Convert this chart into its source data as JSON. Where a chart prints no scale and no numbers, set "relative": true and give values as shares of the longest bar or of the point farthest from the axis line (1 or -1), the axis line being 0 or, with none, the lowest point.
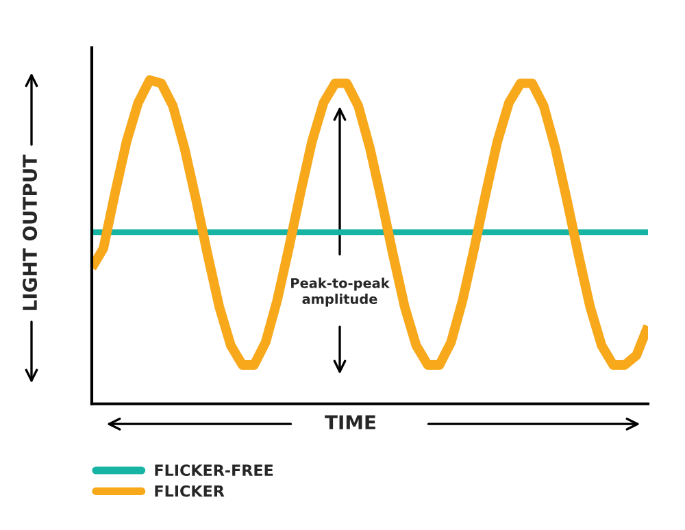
{
  "chart_data": {
    "type": "line",
    "relative": true,
    "xlabel": "TIME",
    "ylabel": "LIGHT OUTPUT",
    "categories": [
      null,
      null,
      null,
      null,
      null,
      null,
      null,
      null,
      null,
      null,
      null,
      null,
      null,
      null,
      null,
      null,
      null,
      null,
      null,
      null,
      null,
      null,
      null,
      null,
      null,
      null,
      null,
      null,
      null,
      null,
      null,
      null,
      null,
      null,
      null,
      null,
      null,
      null,
      null,
      null,
      null,
      null,
      null,
      null,
      null,
      null,
      null,
      null,
      null
    ],
    "series": [
      {
        "name": "FLICKER-FREE",
        "color": "#17b3a3",
        "values": [
          0.53,
          0.53,
          0.53,
          0.53,
          0.53,
          0.53,
          0.53,
          0.53,
          0.53,
          0.53,
          0.53,
          0.53,
          0.53,
          0.53,
          0.53,
          0.53,
          0.53,
          0.53,
          0.53,
          0.53,
          0.53,
          0.53,
          0.53,
          0.53,
          0.53,
          0.53,
          0.53,
          0.53,
          0.53,
          0.53,
          0.53,
          0.53,
          0.53,
          0.53,
          0.53,
          0.53,
          0.53,
          0.53,
          0.53,
          0.53,
          0.53,
          0.53,
          0.53,
          0.53,
          0.53,
          0.53,
          0.53,
          0.53,
          0.53
        ]
      },
      {
        "name": "FLICKER",
        "color": "#f7a81b",
        "values": [
          0.42,
          0.48,
          0.65,
          0.81,
          0.93,
          1.0,
          0.99,
          0.92,
          0.79,
          0.63,
          0.46,
          0.3,
          0.18,
          0.12,
          0.12,
          0.19,
          0.32,
          0.48,
          0.65,
          0.81,
          0.93,
          0.99,
          0.99,
          0.92,
          0.79,
          0.63,
          0.46,
          0.3,
          0.18,
          0.12,
          0.12,
          0.19,
          0.32,
          0.48,
          0.65,
          0.81,
          0.93,
          0.99,
          0.99,
          0.92,
          0.79,
          0.63,
          0.46,
          0.3,
          0.18,
          0.12,
          0.12,
          0.15,
          0.24
        ]
      }
    ],
    "annotations": [
      "Peak-to-peak\namplitude"
    ],
    "legend": "bottom left",
    "marker": "none",
    "line_style": "solid"
  }
}
